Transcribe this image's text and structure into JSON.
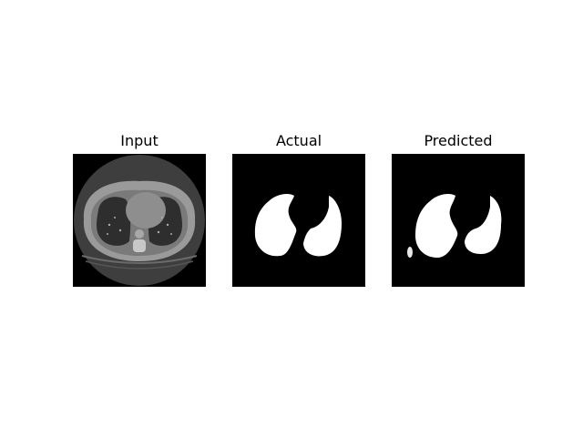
{
  "figure": {
    "panels": [
      {
        "title": "Input",
        "content": "ct-scan-slice"
      },
      {
        "title": "Actual",
        "content": "ground-truth-mask"
      },
      {
        "title": "Predicted",
        "content": "predicted-mask"
      }
    ],
    "colors": {
      "background": "#ffffff",
      "mask_background": "#000000",
      "mask_foreground": "#ffffff",
      "body_tissue": "#7a7a7a",
      "lung_region": "#3a3a3a"
    }
  }
}
